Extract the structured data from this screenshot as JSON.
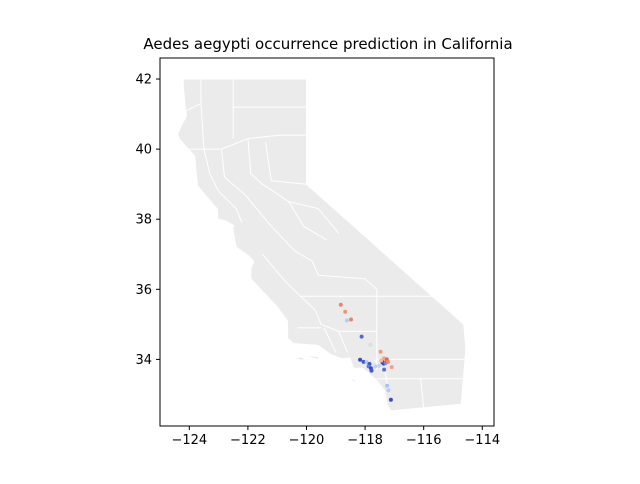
{
  "figure": {
    "title": "Aedes aegypti occurrence prediction in California"
  },
  "chart_data": {
    "type": "scatter",
    "title": "Aedes aegypti occurrence prediction in California",
    "xlabel": "",
    "ylabel": "",
    "xlim": [
      -125,
      -113.6
    ],
    "ylim": [
      32.1,
      42.6
    ],
    "x_ticks": [
      -124,
      -122,
      -120,
      -118,
      -116,
      -114
    ],
    "x_tick_labels": [
      "−124",
      "−122",
      "−120",
      "−118",
      "−116",
      "−114"
    ],
    "y_ticks": [
      34,
      36,
      38,
      40,
      42
    ],
    "y_tick_labels": [
      "34",
      "36",
      "38",
      "40",
      "42"
    ],
    "grid": false,
    "legend": "none",
    "basemap": {
      "name": "California counties",
      "fill_color": "#ebebeb",
      "edge_color": "#ffffff",
      "outline": [
        [
          -124.21,
          42.0
        ],
        [
          -120.0,
          42.0
        ],
        [
          -120.0,
          39.0
        ],
        [
          -114.63,
          35.0
        ],
        [
          -114.56,
          34.3
        ],
        [
          -114.72,
          32.72
        ],
        [
          -117.12,
          32.53
        ],
        [
          -117.25,
          32.7
        ],
        [
          -117.33,
          33.1
        ],
        [
          -117.6,
          33.4
        ],
        [
          -118.08,
          33.75
        ],
        [
          -118.4,
          33.75
        ],
        [
          -118.52,
          34.04
        ],
        [
          -118.8,
          34.02
        ],
        [
          -119.2,
          34.15
        ],
        [
          -119.6,
          34.4
        ],
        [
          -120.45,
          34.45
        ],
        [
          -120.64,
          34.6
        ],
        [
          -120.65,
          35.1
        ],
        [
          -121.0,
          35.5
        ],
        [
          -121.9,
          36.3
        ],
        [
          -121.9,
          36.6
        ],
        [
          -121.8,
          36.8
        ],
        [
          -122.0,
          36.97
        ],
        [
          -122.4,
          37.2
        ],
        [
          -122.52,
          37.75
        ],
        [
          -122.48,
          37.82
        ],
        [
          -122.75,
          37.95
        ],
        [
          -123.02,
          38.0
        ],
        [
          -123.05,
          38.3
        ],
        [
          -123.72,
          38.95
        ],
        [
          -123.82,
          39.8
        ],
        [
          -124.35,
          40.3
        ],
        [
          -124.4,
          40.45
        ],
        [
          -124.1,
          40.95
        ],
        [
          -124.15,
          41.3
        ],
        [
          -124.2,
          41.75
        ],
        [
          -124.21,
          42.0
        ]
      ],
      "islands": [
        [
          [
            -120.45,
            34.03
          ],
          [
            -120.05,
            33.97
          ],
          [
            -120.15,
            34.07
          ]
        ],
        [
          [
            -119.95,
            34.07
          ],
          [
            -119.55,
            34.0
          ],
          [
            -119.6,
            34.08
          ],
          [
            -119.9,
            34.1
          ]
        ],
        [
          [
            -119.1,
            33.51
          ],
          [
            -119.02,
            33.48
          ]
        ],
        [
          [
            -118.6,
            33.48
          ],
          [
            -118.3,
            33.32
          ],
          [
            -118.35,
            33.42
          ]
        ],
        [
          [
            -118.6,
            33.05
          ],
          [
            -118.38,
            32.82
          ],
          [
            -118.5,
            32.9
          ]
        ]
      ],
      "county_lines": [
        [
          [
            -122.5,
            42.0
          ],
          [
            -122.5,
            40.3
          ]
        ],
        [
          [
            -122.5,
            41.2
          ],
          [
            -120.0,
            41.2
          ]
        ],
        [
          [
            -123.6,
            42.0
          ],
          [
            -123.6,
            41.3
          ],
          [
            -124.1,
            41.1
          ]
        ],
        [
          [
            -123.6,
            41.3
          ],
          [
            -123.5,
            40.0
          ]
        ],
        [
          [
            -124.2,
            40.0
          ],
          [
            -122.9,
            40.0
          ],
          [
            -122.0,
            40.3
          ],
          [
            -120.9,
            40.4
          ],
          [
            -120.0,
            40.4
          ]
        ],
        [
          [
            -123.5,
            40.0
          ],
          [
            -123.3,
            39.3
          ],
          [
            -123.0,
            38.8
          ]
        ],
        [
          [
            -122.9,
            40.0
          ],
          [
            -122.8,
            39.2
          ],
          [
            -122.1,
            38.7
          ]
        ],
        [
          [
            -122.0,
            40.3
          ],
          [
            -121.9,
            39.3
          ],
          [
            -121.5,
            39.0
          ]
        ],
        [
          [
            -121.4,
            40.2
          ],
          [
            -121.2,
            39.1
          ],
          [
            -120.0,
            39.0
          ]
        ],
        [
          [
            -123.0,
            38.8
          ],
          [
            -122.4,
            38.3
          ],
          [
            -122.2,
            37.9
          ]
        ],
        [
          [
            -122.1,
            38.7
          ],
          [
            -121.6,
            38.2
          ],
          [
            -121.2,
            37.8
          ]
        ],
        [
          [
            -121.5,
            39.0
          ],
          [
            -120.6,
            38.5
          ],
          [
            -119.6,
            38.3
          ],
          [
            -118.9,
            37.6
          ]
        ],
        [
          [
            -121.2,
            37.8
          ],
          [
            -120.4,
            37.1
          ],
          [
            -119.8,
            36.8
          ],
          [
            -119.6,
            36.4
          ]
        ],
        [
          [
            -121.5,
            37.0
          ],
          [
            -120.7,
            36.2
          ],
          [
            -120.2,
            35.8
          ],
          [
            -119.7,
            35.4
          ]
        ],
        [
          [
            -120.6,
            38.5
          ],
          [
            -120.1,
            37.8
          ],
          [
            -119.3,
            37.4
          ]
        ],
        [
          [
            -119.6,
            36.4
          ],
          [
            -118.0,
            36.3
          ],
          [
            -117.6,
            36.0
          ]
        ],
        [
          [
            -120.2,
            35.8
          ],
          [
            -118.0,
            35.8
          ],
          [
            -117.6,
            35.8
          ]
        ],
        [
          [
            -119.7,
            35.4
          ],
          [
            -119.5,
            35.0
          ],
          [
            -118.9,
            34.8
          ],
          [
            -117.6,
            34.8
          ]
        ],
        [
          [
            -120.3,
            34.9
          ],
          [
            -119.5,
            34.9
          ]
        ],
        [
          [
            -119.4,
            34.9
          ],
          [
            -119.0,
            34.2
          ]
        ],
        [
          [
            -118.9,
            34.8
          ],
          [
            -118.6,
            34.2
          ]
        ],
        [
          [
            -117.6,
            36.0
          ],
          [
            -117.6,
            33.7
          ]
        ],
        [
          [
            -117.7,
            34.0
          ],
          [
            -117.3,
            33.6
          ],
          [
            -117.2,
            33.1
          ]
        ],
        [
          [
            -117.6,
            34.0
          ],
          [
            -114.4,
            34.0
          ]
        ],
        [
          [
            -117.6,
            33.45
          ],
          [
            -114.5,
            33.45
          ]
        ],
        [
          [
            -116.1,
            33.45
          ],
          [
            -116.0,
            32.6
          ]
        ],
        [
          [
            -117.6,
            35.8
          ],
          [
            -115.6,
            35.8
          ],
          [
            -115.0,
            35.4
          ]
        ]
      ]
    },
    "series": [
      {
        "color_scale": "coolwarm",
        "points": [
          {
            "x": -118.83,
            "y": 35.56,
            "color": "#ee8468"
          },
          {
            "x": -118.68,
            "y": 35.36,
            "color": "#f29274"
          },
          {
            "x": -118.48,
            "y": 35.14,
            "color": "#ed8366"
          },
          {
            "x": -118.62,
            "y": 35.11,
            "color": "#b2ccfb"
          },
          {
            "x": -118.12,
            "y": 34.65,
            "color": "#4f69d9"
          },
          {
            "x": -117.82,
            "y": 34.42,
            "color": "#dedcdb"
          },
          {
            "x": -117.47,
            "y": 34.22,
            "color": "#f4987a"
          },
          {
            "x": -117.35,
            "y": 34.03,
            "color": "#f5a081"
          },
          {
            "x": -117.32,
            "y": 33.98,
            "color": "#f7a98b"
          },
          {
            "x": -117.26,
            "y": 34.0,
            "color": "#e26952"
          },
          {
            "x": -117.41,
            "y": 33.92,
            "color": "#b40426"
          },
          {
            "x": -117.37,
            "y": 33.88,
            "color": "#3b4cc0"
          },
          {
            "x": -117.3,
            "y": 33.9,
            "color": "#6788ee"
          },
          {
            "x": -117.22,
            "y": 33.93,
            "color": "#ee8468"
          },
          {
            "x": -117.45,
            "y": 33.97,
            "color": "#f7b89c"
          },
          {
            "x": -117.09,
            "y": 33.78,
            "color": "#f5a081"
          },
          {
            "x": -118.17,
            "y": 33.99,
            "color": "#3b4cc0"
          },
          {
            "x": -118.05,
            "y": 33.93,
            "color": "#4358cb"
          },
          {
            "x": -117.95,
            "y": 33.92,
            "color": "#aac7fd"
          },
          {
            "x": -117.85,
            "y": 33.87,
            "color": "#3f53c6"
          },
          {
            "x": -117.88,
            "y": 33.8,
            "color": "#5a78e4"
          },
          {
            "x": -117.8,
            "y": 33.75,
            "color": "#3b4cc0"
          },
          {
            "x": -117.78,
            "y": 33.68,
            "color": "#4358cb"
          },
          {
            "x": -117.65,
            "y": 33.8,
            "color": "#b9d0f9"
          },
          {
            "x": -117.52,
            "y": 33.82,
            "color": "#c0d4f5"
          },
          {
            "x": -117.35,
            "y": 33.71,
            "color": "#5470de"
          },
          {
            "x": -117.2,
            "y": 33.12,
            "color": "#b2ccfb"
          },
          {
            "x": -117.25,
            "y": 33.25,
            "color": "#a5c3fe"
          },
          {
            "x": -117.12,
            "y": 32.85,
            "color": "#3b4cc0"
          }
        ]
      }
    ]
  }
}
